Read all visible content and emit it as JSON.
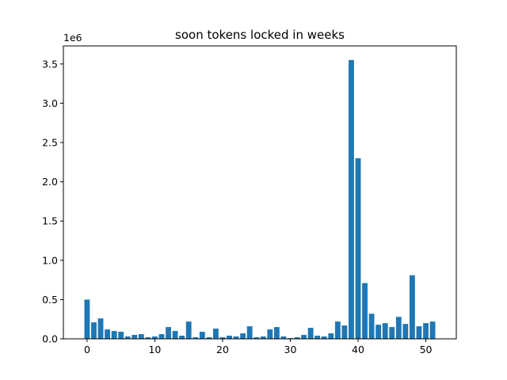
{
  "chart_data": {
    "type": "bar",
    "title": "soon tokens locked in weeks",
    "xlabel": "",
    "ylabel": "",
    "y_scale_label": "1e6",
    "bar_color": "#1f77b4",
    "x": [
      0,
      1,
      2,
      3,
      4,
      5,
      6,
      7,
      8,
      9,
      10,
      11,
      12,
      13,
      14,
      15,
      16,
      17,
      18,
      19,
      20,
      21,
      22,
      23,
      24,
      25,
      26,
      27,
      28,
      29,
      30,
      31,
      32,
      33,
      34,
      35,
      36,
      37,
      38,
      39,
      40,
      41,
      42,
      43,
      44,
      45,
      46,
      47,
      48,
      49,
      50,
      51
    ],
    "values": [
      500000,
      210000,
      260000,
      120000,
      100000,
      90000,
      30000,
      50000,
      60000,
      20000,
      30000,
      60000,
      150000,
      100000,
      40000,
      220000,
      20000,
      90000,
      20000,
      130000,
      20000,
      40000,
      30000,
      70000,
      160000,
      20000,
      30000,
      120000,
      150000,
      30000,
      10000,
      20000,
      50000,
      140000,
      40000,
      30000,
      70000,
      220000,
      170000,
      3550000,
      2300000,
      710000,
      320000,
      180000,
      200000,
      150000,
      280000,
      190000,
      810000,
      160000,
      200000,
      220000
    ],
    "xlim": [
      -3.5,
      54.5
    ],
    "ylim": [
      0,
      3730000
    ],
    "x_ticks": [
      0,
      10,
      20,
      30,
      40,
      50
    ],
    "y_ticks": [
      0,
      500000,
      1000000,
      1500000,
      2000000,
      2500000,
      3000000,
      3500000
    ],
    "y_tick_labels": [
      "0.0",
      "0.5",
      "1.0",
      "1.5",
      "2.0",
      "2.5",
      "3.0",
      "3.5"
    ],
    "grid": false,
    "legend": "none"
  }
}
